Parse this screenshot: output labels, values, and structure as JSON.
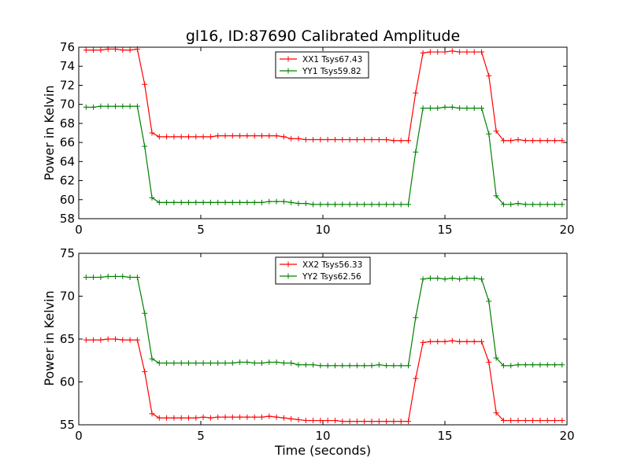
{
  "title": "gl16, ID:87690 Calibrated Amplitude",
  "colors": {
    "red": "#ff0000",
    "green": "#008000"
  },
  "chart_data": [
    {
      "type": "line",
      "ylabel": "Power in Kelvin",
      "xlabel": "",
      "xlim": [
        0,
        20
      ],
      "ylim": [
        58,
        76
      ],
      "xticks": [
        0,
        5,
        10,
        15,
        20
      ],
      "yticks": [
        58,
        60,
        62,
        64,
        66,
        68,
        70,
        72,
        74,
        76
      ],
      "grid": false,
      "legend_position": "top-center",
      "x": [
        0.3,
        0.6,
        0.9,
        1.2,
        1.5,
        1.8,
        2.1,
        2.4,
        2.7,
        3.0,
        3.3,
        3.6,
        3.9,
        4.2,
        4.5,
        4.8,
        5.1,
        5.4,
        5.7,
        6.0,
        6.3,
        6.6,
        6.9,
        7.2,
        7.5,
        7.8,
        8.1,
        8.4,
        8.7,
        9.0,
        9.3,
        9.6,
        9.9,
        10.2,
        10.5,
        10.8,
        11.1,
        11.4,
        11.7,
        12.0,
        12.3,
        12.6,
        12.9,
        13.2,
        13.5,
        13.8,
        14.1,
        14.4,
        14.7,
        15.0,
        15.3,
        15.6,
        15.9,
        16.2,
        16.5,
        16.8,
        17.1,
        17.4,
        17.7,
        18.0,
        18.3,
        18.6,
        18.9,
        19.2,
        19.5,
        19.8
      ],
      "series": [
        {
          "name": "XX1 Tsys67.43",
          "color": "#ff0000",
          "values": [
            75.7,
            75.7,
            75.7,
            75.8,
            75.8,
            75.7,
            75.7,
            75.8,
            72.1,
            67.0,
            66.6,
            66.6,
            66.6,
            66.6,
            66.6,
            66.6,
            66.6,
            66.6,
            66.7,
            66.7,
            66.7,
            66.7,
            66.7,
            66.7,
            66.7,
            66.7,
            66.7,
            66.6,
            66.4,
            66.4,
            66.3,
            66.3,
            66.3,
            66.3,
            66.3,
            66.3,
            66.3,
            66.3,
            66.3,
            66.3,
            66.3,
            66.3,
            66.2,
            66.2,
            66.2,
            71.2,
            75.4,
            75.5,
            75.5,
            75.5,
            75.6,
            75.5,
            75.5,
            75.5,
            75.5,
            73.0,
            67.2,
            66.2,
            66.2,
            66.3,
            66.2,
            66.2,
            66.2,
            66.2,
            66.2,
            66.2
          ]
        },
        {
          "name": "YY1 Tsys59.82",
          "color": "#008000",
          "values": [
            69.7,
            69.7,
            69.8,
            69.8,
            69.8,
            69.8,
            69.8,
            69.8,
            65.6,
            60.2,
            59.7,
            59.7,
            59.7,
            59.7,
            59.7,
            59.7,
            59.7,
            59.7,
            59.7,
            59.7,
            59.7,
            59.7,
            59.7,
            59.7,
            59.7,
            59.8,
            59.8,
            59.8,
            59.7,
            59.6,
            59.6,
            59.5,
            59.5,
            59.5,
            59.5,
            59.5,
            59.5,
            59.5,
            59.5,
            59.5,
            59.5,
            59.5,
            59.5,
            59.5,
            59.5,
            65.0,
            69.6,
            69.6,
            69.6,
            69.7,
            69.7,
            69.6,
            69.6,
            69.6,
            69.6,
            66.9,
            60.4,
            59.5,
            59.5,
            59.6,
            59.5,
            59.5,
            59.5,
            59.5,
            59.5,
            59.5
          ]
        }
      ]
    },
    {
      "type": "line",
      "ylabel": "Power in Kelvin",
      "xlabel": "Time (seconds)",
      "xlim": [
        0,
        20
      ],
      "ylim": [
        55,
        75
      ],
      "xticks": [
        0,
        5,
        10,
        15,
        20
      ],
      "yticks": [
        55,
        60,
        65,
        70,
        75
      ],
      "grid": false,
      "legend_position": "top-center",
      "x": [
        0.3,
        0.6,
        0.9,
        1.2,
        1.5,
        1.8,
        2.1,
        2.4,
        2.7,
        3.0,
        3.3,
        3.6,
        3.9,
        4.2,
        4.5,
        4.8,
        5.1,
        5.4,
        5.7,
        6.0,
        6.3,
        6.6,
        6.9,
        7.2,
        7.5,
        7.8,
        8.1,
        8.4,
        8.7,
        9.0,
        9.3,
        9.6,
        9.9,
        10.2,
        10.5,
        10.8,
        11.1,
        11.4,
        11.7,
        12.0,
        12.3,
        12.6,
        12.9,
        13.2,
        13.5,
        13.8,
        14.1,
        14.4,
        14.7,
        15.0,
        15.3,
        15.6,
        15.9,
        16.2,
        16.5,
        16.8,
        17.1,
        17.4,
        17.7,
        18.0,
        18.3,
        18.6,
        18.9,
        19.2,
        19.5,
        19.8
      ],
      "series": [
        {
          "name": "XX2 Tsys56.33",
          "color": "#ff0000",
          "values": [
            64.9,
            64.9,
            64.9,
            65.0,
            65.0,
            64.9,
            64.9,
            64.9,
            61.2,
            56.3,
            55.8,
            55.8,
            55.8,
            55.8,
            55.8,
            55.8,
            55.9,
            55.8,
            55.9,
            55.9,
            55.9,
            55.9,
            55.9,
            55.9,
            55.9,
            56.0,
            55.9,
            55.8,
            55.7,
            55.6,
            55.5,
            55.5,
            55.5,
            55.5,
            55.5,
            55.4,
            55.4,
            55.4,
            55.4,
            55.4,
            55.4,
            55.4,
            55.4,
            55.4,
            55.4,
            60.4,
            64.6,
            64.7,
            64.7,
            64.7,
            64.8,
            64.7,
            64.7,
            64.7,
            64.7,
            62.3,
            56.4,
            55.5,
            55.5,
            55.5,
            55.5,
            55.5,
            55.5,
            55.5,
            55.5,
            55.5
          ]
        },
        {
          "name": "YY2 Tsys62.56",
          "color": "#008000",
          "values": [
            72.2,
            72.2,
            72.2,
            72.3,
            72.3,
            72.3,
            72.2,
            72.2,
            68.0,
            62.7,
            62.2,
            62.2,
            62.2,
            62.2,
            62.2,
            62.2,
            62.2,
            62.2,
            62.2,
            62.2,
            62.2,
            62.3,
            62.3,
            62.2,
            62.2,
            62.3,
            62.3,
            62.2,
            62.2,
            62.0,
            62.0,
            62.0,
            61.9,
            61.9,
            61.9,
            61.9,
            61.9,
            61.9,
            61.9,
            61.9,
            62.0,
            61.9,
            61.9,
            61.9,
            61.9,
            67.5,
            72.0,
            72.1,
            72.1,
            72.0,
            72.1,
            72.0,
            72.1,
            72.1,
            72.0,
            69.4,
            62.8,
            61.9,
            61.9,
            62.0,
            62.0,
            62.0,
            62.0,
            62.0,
            62.0,
            62.0
          ]
        }
      ]
    }
  ]
}
